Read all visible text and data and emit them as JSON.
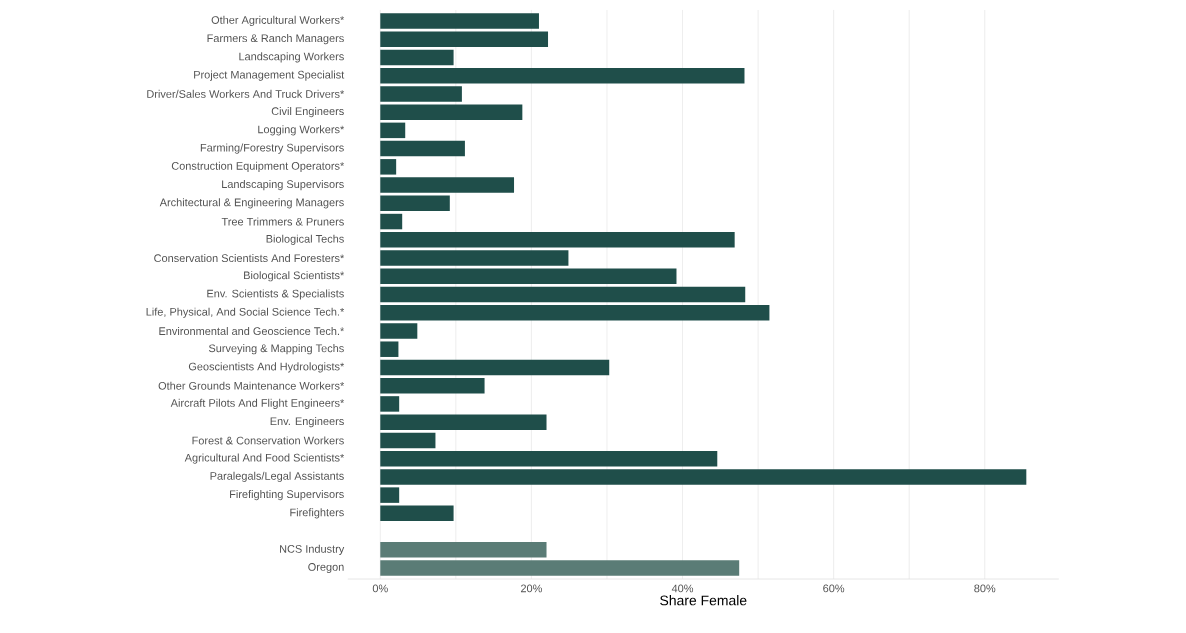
{
  "chart_data": {
    "type": "bar",
    "orientation": "horizontal",
    "xlabel": "Share Female",
    "categories": [
      "Other Agricultural Workers*",
      "Farmers & Ranch Managers",
      "Landscaping Workers",
      "Project Management Specialist",
      "Driver/Sales Workers And Truck Drivers*",
      "Civil Engineers",
      "Logging Workers*",
      "Farming/Forestry Supervisors",
      "Construction Equipment Operators*",
      "Landscaping Supervisors",
      "Architectural & Engineering Managers",
      "Tree Trimmers & Pruners",
      "Biological Techs",
      "Conservation Scientists And Foresters*",
      "Biological Scientists*",
      "Env. Scientists & Specialists",
      "Life, Physical, And Social Science Tech.*",
      "Environmental and Geoscience Tech.*",
      "Surveying & Mapping Techs",
      "Geoscientists And Hydrologists*",
      "Other Grounds Maintenance Workers*",
      "Aircraft Pilots And Flight Engineers*",
      "Env. Engineers",
      "Forest & Conservation Workers",
      "Agricultural And Food Scientists*",
      "Paralegals/Legal Assistants",
      "Firefighting Supervisors",
      "Firefighters",
      null,
      "NCS Industry",
      "Oregon"
    ],
    "values": [
      21.0,
      22.2,
      9.7,
      48.2,
      10.8,
      18.8,
      3.3,
      11.2,
      2.1,
      17.7,
      9.2,
      2.9,
      46.9,
      24.9,
      39.2,
      48.3,
      51.5,
      4.9,
      2.4,
      30.3,
      13.8,
      2.5,
      22.0,
      7.3,
      44.6,
      85.5,
      2.5,
      9.7,
      null,
      22.0,
      47.5
    ],
    "colors": [
      "#1f4e4a",
      "#1f4e4a",
      "#1f4e4a",
      "#1f4e4a",
      "#1f4e4a",
      "#1f4e4a",
      "#1f4e4a",
      "#1f4e4a",
      "#1f4e4a",
      "#1f4e4a",
      "#1f4e4a",
      "#1f4e4a",
      "#1f4e4a",
      "#1f4e4a",
      "#1f4e4a",
      "#1f4e4a",
      "#1f4e4a",
      "#1f4e4a",
      "#1f4e4a",
      "#1f4e4a",
      "#1f4e4a",
      "#1f4e4a",
      "#1f4e4a",
      "#1f4e4a",
      "#1f4e4a",
      "#1f4e4a",
      "#1f4e4a",
      "#1f4e4a",
      "#1f4e4a",
      "#5a7c76",
      "#5a7c76"
    ],
    "xticks": [
      {
        "value": 0,
        "label": "0%"
      },
      {
        "value": 10,
        "label": null
      },
      {
        "value": 20,
        "label": "20%"
      },
      {
        "value": 30,
        "label": null
      },
      {
        "value": 40,
        "label": "40%"
      },
      {
        "value": 50,
        "label": null
      },
      {
        "value": 60,
        "label": "60%"
      },
      {
        "value": 70,
        "label": null
      },
      {
        "value": 80,
        "label": "80%"
      }
    ],
    "xlim": [
      -4.3,
      89.8
    ],
    "grid": "x"
  }
}
